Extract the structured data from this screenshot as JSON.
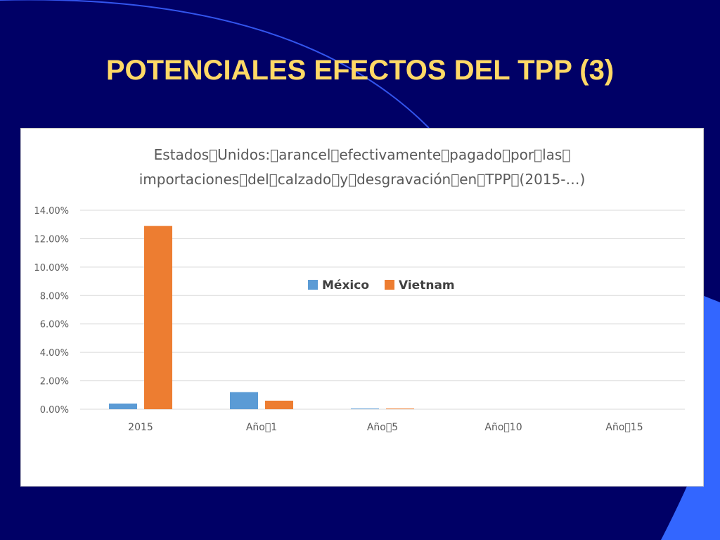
{
  "slide": {
    "title": "POTENCIALES EFECTOS DEL TPP (3)"
  },
  "colors": {
    "background": "#000066",
    "title": "#FFD966",
    "accent_shape": "#3366FF",
    "series_mexico": "#5B9BD5",
    "series_vietnam": "#ED7D31"
  },
  "chart_data": {
    "type": "bar",
    "title_lines": [
      "Estados\u0000Unidos:\u0000arancel\u0000efectivamente\u0000pagado\u0000por\u0000las\u0000",
      "importaciones\u0000del\u0000calzado\u0000y\u0000desgravación\u0000en\u0000TPP\u0000(2015-…)"
    ],
    "categories": [
      "2015",
      "Año\u00001",
      "Año\u00005",
      "Año\u000010",
      "Año\u000015"
    ],
    "series": [
      {
        "name": "México",
        "values": [
          0.4,
          1.2,
          0.05,
          0,
          0
        ]
      },
      {
        "name": "Vietnam",
        "values": [
          12.9,
          0.6,
          0.05,
          0,
          0
        ]
      }
    ],
    "y_ticks": [
      "0.00%",
      "2.00%",
      "4.00%",
      "6.00%",
      "8.00%",
      "10.00%",
      "12.00%",
      "14.00%"
    ],
    "ylim": [
      0,
      14
    ],
    "unit": "%",
    "grid": true,
    "legend_position": "inside-center"
  }
}
